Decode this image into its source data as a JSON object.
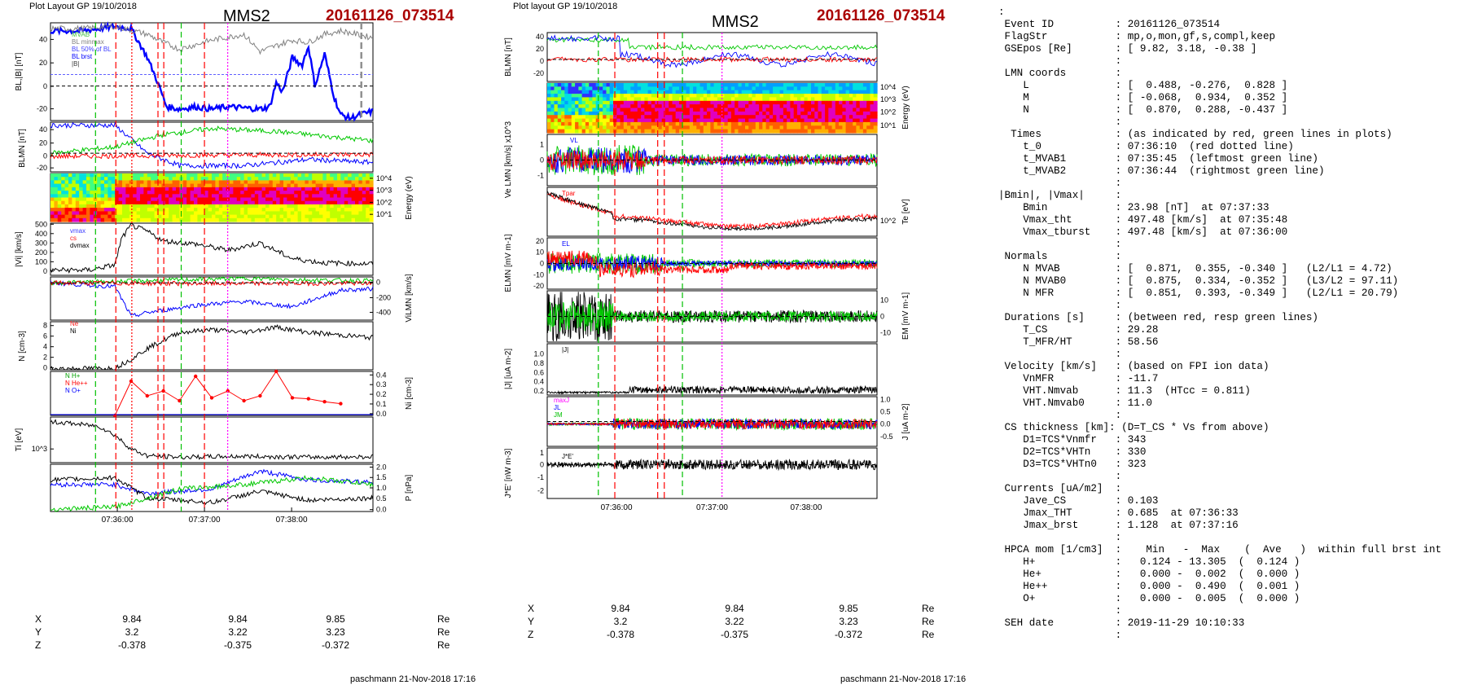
{
  "left_panel": {
    "header": "Plot Layout GP 19/10/2018",
    "spacecraft": "MMS2",
    "event": "20161126_073514",
    "footer": "paschmann 21-Nov-2018 17:16",
    "time_ticks": [
      "07:36:00",
      "07:37:00",
      "07:38:00"
    ],
    "coords": {
      "rows": [
        {
          "label": "X",
          "values": [
            "9.84",
            "9.84",
            "9.85"
          ],
          "unit": "Re"
        },
        {
          "label": "Y",
          "values": [
            "3.2",
            "3.22",
            "3.23"
          ],
          "unit": "Re"
        },
        {
          "label": "Z",
          "values": [
            "-0.378",
            "-0.375",
            "-0.372"
          ],
          "unit": "Re"
        }
      ]
    }
  },
  "right_panel": {
    "header": "Plot layout GP 19/10/2018",
    "spacecraft": "MMS2",
    "event": "20161126_073514",
    "footer": "paschmann 21-Nov-2018 17:16",
    "time_ticks": [
      "07:36:00",
      "07:37:00",
      "07:38:00"
    ],
    "coords": {
      "rows": [
        {
          "label": "X",
          "values": [
            "9.84",
            "9.84",
            "9.85"
          ],
          "unit": "Re"
        },
        {
          "label": "Y",
          "values": [
            "3.2",
            "3.22",
            "3.23"
          ],
          "unit": "Re"
        },
        {
          "label": "Z",
          "values": [
            "-0.378",
            "-0.375",
            "-0.372"
          ],
          "unit": "Re"
        }
      ]
    }
  },
  "colors": {
    "red": "#ff0000",
    "green": "#00c800",
    "blue": "#0000ff",
    "black": "#000000",
    "gray": "#808080",
    "magenta": "#ff00ff",
    "darkred": "#a00000"
  },
  "chart_data": [
    {
      "type": "line",
      "title": "MMS2 20161126_073514",
      "x_range_seconds": [
        "07:35:14",
        "07:38:56"
      ],
      "x_ticks": [
        "07:36:00",
        "07:37:00",
        "07:38:00"
      ],
      "marker_times": {
        "red_dashed": [
          "07:35:59",
          "07:36:28",
          "07:36:32",
          "07:37:00"
        ],
        "red_dotted": [
          "07:36:10"
        ],
        "green_dashed": [
          "07:35:45",
          "07:36:44"
        ],
        "magenta_dotted": [
          "07:37:16"
        ],
        "gray_dashed": [
          "07:38:48"
        ]
      },
      "panels": [
        {
          "id": "BL",
          "ylabel": "BL,|B| [nT]",
          "yticks": [
            "40",
            "20",
            "0",
            "-20"
          ],
          "ylim": [
            -30,
            55
          ],
          "legend": [
            "MVAB",
            "BL minmax",
            "BL 50% of BL",
            "BL brst",
            "|B|"
          ],
          "series": [
            {
              "name": "BL brst",
              "color": "#0000ff",
              "x": [
                0,
                0.1,
                0.2,
                0.25,
                0.3,
                0.33,
                0.36,
                0.4,
                0.45,
                0.5,
                0.55,
                0.6,
                0.65,
                0.68,
                0.7,
                0.72,
                0.75,
                0.78,
                0.8,
                0.82,
                0.85,
                0.88,
                0.9,
                0.93,
                0.96,
                1.0
              ],
              "values": [
                48,
                48,
                52,
                50,
                25,
                5,
                -18,
                -20,
                -18,
                -20,
                -18,
                -19,
                -20,
                -18,
                3,
                -5,
                25,
                18,
                35,
                0,
                28,
                -10,
                -25,
                -28,
                -25,
                -22
              ]
            },
            {
              "name": "|B|",
              "color": "#808080",
              "x": [
                0,
                0.1,
                0.2,
                0.3,
                0.35,
                0.4,
                0.5,
                0.6,
                0.65,
                0.7,
                0.75,
                0.8,
                0.85,
                0.9,
                1.0
              ],
              "values": [
                50,
                50,
                52,
                45,
                38,
                32,
                40,
                45,
                30,
                35,
                40,
                38,
                45,
                48,
                42
              ]
            }
          ]
        },
        {
          "id": "BLMN",
          "ylabel": "BLMN [nT]",
          "yticks": [
            "40",
            "20",
            "0",
            "-20"
          ],
          "ylim": [
            -30,
            50
          ],
          "series": [
            {
              "name": "BL",
              "color": "#0000ff",
              "x": [
                0,
                0.2,
                0.3,
                0.4,
                0.6,
                0.8,
                1.0
              ],
              "values": [
                45,
                45,
                0,
                -20,
                -20,
                -10,
                -15
              ]
            },
            {
              "name": "BM",
              "color": "#00c800",
              "x": [
                0,
                0.2,
                0.35,
                0.5,
                0.7,
                0.9,
                1.0
              ],
              "values": [
                0,
                10,
                30,
                40,
                35,
                25,
                20
              ]
            },
            {
              "name": "BN",
              "color": "#ff0000",
              "x": [
                0,
                0.5,
                1.0
              ],
              "values": [
                -5,
                -3,
                -2
              ]
            }
          ]
        },
        {
          "id": "ion_spec",
          "ylabel": "Energy (eV)",
          "yticks": [
            "10^4",
            "10^3",
            "10^2",
            "10^1"
          ],
          "type": "heatmap"
        },
        {
          "id": "Vi",
          "ylabel": "|Vi| [km/s]",
          "yticks": [
            "500",
            "400",
            "300",
            "200",
            "100",
            "0"
          ],
          "ylim": [
            0,
            500
          ],
          "legend": [
            "vmax",
            "cs",
            "dvmax"
          ],
          "series": [
            {
              "name": "|Vi|",
              "color": "#000000",
              "x": [
                0,
                0.12,
                0.2,
                0.22,
                0.25,
                0.3,
                0.35,
                0.45,
                0.55,
                0.65,
                0.75,
                0.85,
                1.0
              ],
              "values": [
                50,
                50,
                100,
                350,
                480,
                420,
                330,
                300,
                240,
                310,
                160,
                120,
                110
              ]
            }
          ]
        },
        {
          "id": "ViLMN",
          "ylabel": "ViLMN [km/s]",
          "yticks": [
            "0",
            "-200",
            "-400"
          ],
          "ylim": [
            -500,
            80
          ],
          "series": [
            {
              "name": "VL",
              "color": "#0000ff",
              "x": [
                0,
                0.2,
                0.25,
                0.3,
                0.45,
                0.6,
                0.75,
                0.9,
                1.0
              ],
              "values": [
                0,
                -50,
                -450,
                -400,
                -300,
                -250,
                -320,
                -100,
                -80
              ]
            },
            {
              "name": "VM",
              "color": "#00c800",
              "x": [
                0,
                0.2,
                0.4,
                0.6,
                0.8,
                1.0
              ],
              "values": [
                0,
                20,
                40,
                60,
                40,
                30
              ]
            },
            {
              "name": "VN",
              "color": "#ff0000",
              "x": [
                0,
                0.5,
                1.0
              ],
              "values": [
                0,
                -10,
                -5
              ]
            }
          ]
        },
        {
          "id": "N",
          "ylabel": "N [cm-3]",
          "yticks": [
            "8",
            "6",
            "4",
            "2",
            "0"
          ],
          "ylim": [
            0,
            9
          ],
          "legend": [
            "Ne",
            "Ni"
          ],
          "series": [
            {
              "name": "Ni",
              "color": "#000000",
              "x": [
                0,
                0.2,
                0.25,
                0.3,
                0.4,
                0.5,
                0.6,
                0.7,
                0.8,
                1.0
              ],
              "values": [
                0.2,
                0.3,
                2,
                4,
                7,
                7.5,
                7,
                8,
                7,
                6
              ]
            }
          ]
        },
        {
          "id": "HPCA",
          "ylabel": "Ni [cm-3]",
          "yticks": [
            "0.4",
            "0.3",
            "0.2",
            "0.1",
            "0.0"
          ],
          "ylim": [
            0,
            0.45
          ],
          "legend": [
            "N H+",
            "N He++",
            "N O+"
          ],
          "series": [
            {
              "name": "N He++",
              "color": "#ff0000",
              "x": [
                0.2,
                0.25,
                0.3,
                0.35,
                0.4,
                0.45,
                0.5,
                0.55,
                0.6,
                0.65,
                0.7,
                0.75,
                0.8,
                0.85,
                0.9
              ],
              "values": [
                0.0,
                0.35,
                0.2,
                0.25,
                0.15,
                0.4,
                0.18,
                0.25,
                0.15,
                0.2,
                0.45,
                0.18,
                0.17,
                0.14,
                0.12
              ]
            }
          ]
        },
        {
          "id": "Ti",
          "ylabel": "Ti [eV]",
          "yticks": [
            "10^3"
          ],
          "series": [
            {
              "name": "Ti",
              "color": "#000000",
              "x": [
                0,
                0.15,
                0.2,
                0.25,
                0.3,
                0.4,
                0.6,
                0.8,
                1.0
              ],
              "values": [
                0.9,
                0.8,
                0.6,
                0.3,
                0.15,
                0.12,
                0.14,
                0.12,
                0.13
              ]
            }
          ]
        },
        {
          "id": "P",
          "ylabel": "P [nPa]",
          "yticks": [
            "2.0",
            "1.5",
            "1.0",
            "0.5",
            "0.0"
          ],
          "ylim": [
            0,
            2.1
          ],
          "series": [
            {
              "name": "P",
              "color": "#0000ff",
              "x": [
                0,
                0.2,
                0.3,
                0.5,
                0.65,
                0.8,
                1.0
              ],
              "values": [
                1.2,
                1.2,
                0.8,
                1.0,
                1.8,
                1.4,
                1.3
              ]
            },
            {
              "name": "Ptot",
              "color": "#000000",
              "x": [
                0,
                0.2,
                0.3,
                0.5,
                0.65,
                0.8,
                1.0
              ],
              "values": [
                1.4,
                1.5,
                0.6,
                0.4,
                0.9,
                0.5,
                0.6
              ]
            },
            {
              "name": "Pi",
              "color": "#00c800",
              "x": [
                0,
                0.2,
                0.4,
                0.6,
                0.8,
                1.0
              ],
              "values": [
                0.1,
                0.2,
                1.0,
                1.2,
                1.5,
                1.2
              ]
            }
          ]
        }
      ]
    },
    {
      "type": "line",
      "title": "MMS2 20161126_073514",
      "x_ticks": [
        "07:36:00",
        "07:37:00",
        "07:38:00"
      ],
      "panels": [
        {
          "id": "BLMN",
          "ylabel": "BLMN [nT]",
          "yticks": [
            "40",
            "20",
            "0",
            "-20"
          ],
          "ylim": [
            -30,
            50
          ]
        },
        {
          "id": "elec_spec",
          "ylabel": "Energy (eV)",
          "yticks": [
            "10^4",
            "10^3",
            "10^2",
            "10^1"
          ],
          "type": "heatmap"
        },
        {
          "id": "VeLMN",
          "ylabel": "Ve LMN [km/s]",
          "scale": "x10^3",
          "yticks": [
            "1",
            "0",
            "-1"
          ],
          "legend": [
            "VL"
          ]
        },
        {
          "id": "Te",
          "ylabel": "Te [eV]",
          "yticks": [
            "10^2"
          ],
          "legend": [
            "Tpar"
          ]
        },
        {
          "id": "ELMN",
          "ylabel": "ELMN [mV m-1]",
          "yticks": [
            "20",
            "10",
            "0",
            "-10",
            "-20"
          ],
          "legend": [
            "EL"
          ]
        },
        {
          "id": "EM",
          "ylabel": "EM [mV m-1]",
          "yticks": [
            "10",
            "0",
            "-10"
          ]
        },
        {
          "id": "J",
          "ylabel": "|J| [uA m-2]",
          "yticks": [
            "1.0",
            "0.8",
            "0.6",
            "0.4",
            "0.2"
          ],
          "legend": [
            "|J|"
          ]
        },
        {
          "id": "JLMN",
          "ylabel": "J [uA m-2]",
          "yticks": [
            "1.0",
            "0.5",
            "0.0",
            "-0.5"
          ],
          "legend": [
            "maxJ",
            "JL",
            "JM"
          ]
        },
        {
          "id": "JE",
          "ylabel": "J*E' [nW m-3]",
          "yticks": [
            "1",
            "0",
            "-1",
            "-2"
          ],
          "legend": [
            "J*E'"
          ]
        }
      ]
    }
  ],
  "text_panel": {
    "lines": [
      ":",
      " Event ID          : 20161126_073514",
      " FlagStr           : mp,o,mon,gf,s,compl,keep",
      " GSEpos [Re]       : [ 9.82, 3.18, -0.38 ]",
      "                   :",
      " LMN coords        :",
      "    L              : [  0.488, -0.276,  0.828 ]",
      "    M              : [ -0.068,  0.934,  0.352 ]",
      "    N              : [  0.870,  0.288, -0.437 ]",
      "                   :",
      "  Times            : (as indicated by red, green lines in plots)",
      "    t_0            : 07:36:10  (red dotted line)",
      "    t_MVAB1        : 07:35:45  (leftmost green line)",
      "    t_MVAB2        : 07:36:44  (rightmost green line)",
      "                   :",
      "|Bmin|, |Vmax|     :",
      "    Bmin           : 23.98 [nT]  at 07:37:33",
      "    Vmax_tht       : 497.48 [km/s]  at 07:35:48",
      "    Vmax_tburst    : 497.48 [km/s]  at 07:36:00",
      "                   :",
      " Normals           :",
      "    N MVAB         : [  0.871,  0.355, -0.340 ]   (L2/L1 = 4.72)",
      "    N MVAB0        : [  0.875,  0.334, -0.352 ]   (L3/L2 = 97.11)",
      "    N MFR          : [  0.851,  0.393, -0.349 ]   (L2/L1 = 20.79)",
      "                   :",
      " Durations [s]     : (between red, resp green lines)",
      "    T_CS           : 29.28",
      "    T_MFR/HT       : 58.56",
      "                   :",
      " Velocity [km/s]   : (based on FPI ion data)",
      "    VnMFR          : -11.7",
      "    VHT.Nmvab      : 11.3  (HTcc = 0.811)",
      "    VHT.Nmvab0     : 11.0",
      "                   :",
      " CS thickness [km]: (D=T_CS * Vs from above)",
      "    D1=TCS*Vnmfr   : 343",
      "    D2=TCS*VHTn    : 330",
      "    D3=TCS*VHTn0   : 323",
      "                   :",
      " Currents [uA/m2]  :",
      "    Jave_CS        : 0.103",
      "    Jmax_THT       : 0.685  at 07:36:33",
      "    Jmax_brst      : 1.128  at 07:37:16",
      "                   :",
      " HPCA mom [1/cm3]  :    Min   -  Max    (  Ave   )  within full brst int",
      "    H+             :   0.124 - 13.305  (  0.124 )",
      "    He+            :   0.000 -  0.002  (  0.000 )",
      "    He++           :   0.000 -  0.490  (  0.001 )",
      "    O+             :   0.000 -  0.005  (  0.000 )",
      "                   :",
      " SEH date          : 2019-11-29 10:10:33",
      "                   :"
    ]
  }
}
